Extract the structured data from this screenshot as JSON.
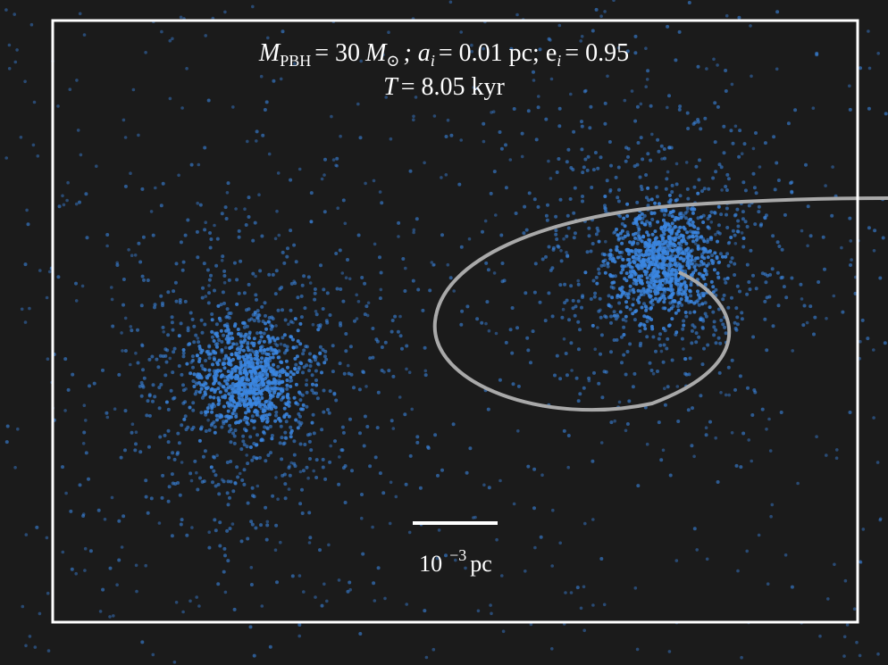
{
  "annotation": {
    "line1": [
      "M",
      "PBH",
      "= 30",
      "M",
      "⊙",
      "; a",
      "i",
      "= 0.01 pc; e",
      "i",
      "= 0.95"
    ],
    "line2": [
      "T",
      "= 8.05 kyr"
    ]
  },
  "scale_bar": {
    "label": [
      "10",
      "−3",
      "pc"
    ]
  }
}
